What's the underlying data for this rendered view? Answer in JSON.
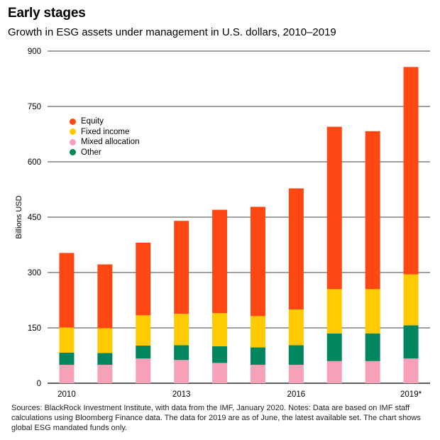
{
  "header": {
    "title": "Early stages",
    "subtitle": "Growth in ESG assets under management in U.S. dollars, 2010–2019"
  },
  "footnote": "Sources: BlackRock Investment Institute, with data from the IMF, January 2020. Notes: Data are based on IMF staff calculations using Bloomberg Finance data. The data for 2019 are as of June, the latest available set. The chart shows global ESG mandated funds only.",
  "chart_data": {
    "type": "bar",
    "stacked": true,
    "title": "Early stages",
    "subtitle": "Growth in ESG assets under management in U.S. dollars, 2010–2019",
    "xlabel": "",
    "ylabel": "Billions USD",
    "ylim": [
      0,
      900
    ],
    "yticks": [
      "0",
      "150",
      "300",
      "450",
      "600",
      "750",
      "900"
    ],
    "categories": [
      "2010",
      "2011",
      "2012",
      "2013",
      "2014",
      "2015",
      "2016",
      "2017",
      "2018",
      "2019*"
    ],
    "x_tick_labels": [
      "2010",
      "",
      "",
      "2013",
      "",
      "",
      "2016",
      "",
      "",
      "2019*"
    ],
    "grid": true,
    "legend_position": "top-left",
    "series": [
      {
        "name": "Mixed allocation",
        "color": "#f7a1b9",
        "values": [
          50,
          50,
          67,
          63,
          55,
          50,
          50,
          60,
          60,
          67
        ]
      },
      {
        "name": "Other",
        "color": "#00855f",
        "values": [
          33,
          32,
          35,
          40,
          45,
          47,
          53,
          75,
          75,
          90
        ]
      },
      {
        "name": "Fixed income",
        "color": "#ffcb00",
        "values": [
          68,
          67,
          82,
          85,
          90,
          85,
          97,
          120,
          120,
          138
        ]
      },
      {
        "name": "Equity",
        "color": "#ff4713",
        "values": [
          202,
          173,
          197,
          252,
          280,
          296,
          328,
          440,
          428,
          562
        ]
      }
    ],
    "legend_order": [
      "Equity",
      "Fixed income",
      "Mixed allocation",
      "Other"
    ]
  }
}
